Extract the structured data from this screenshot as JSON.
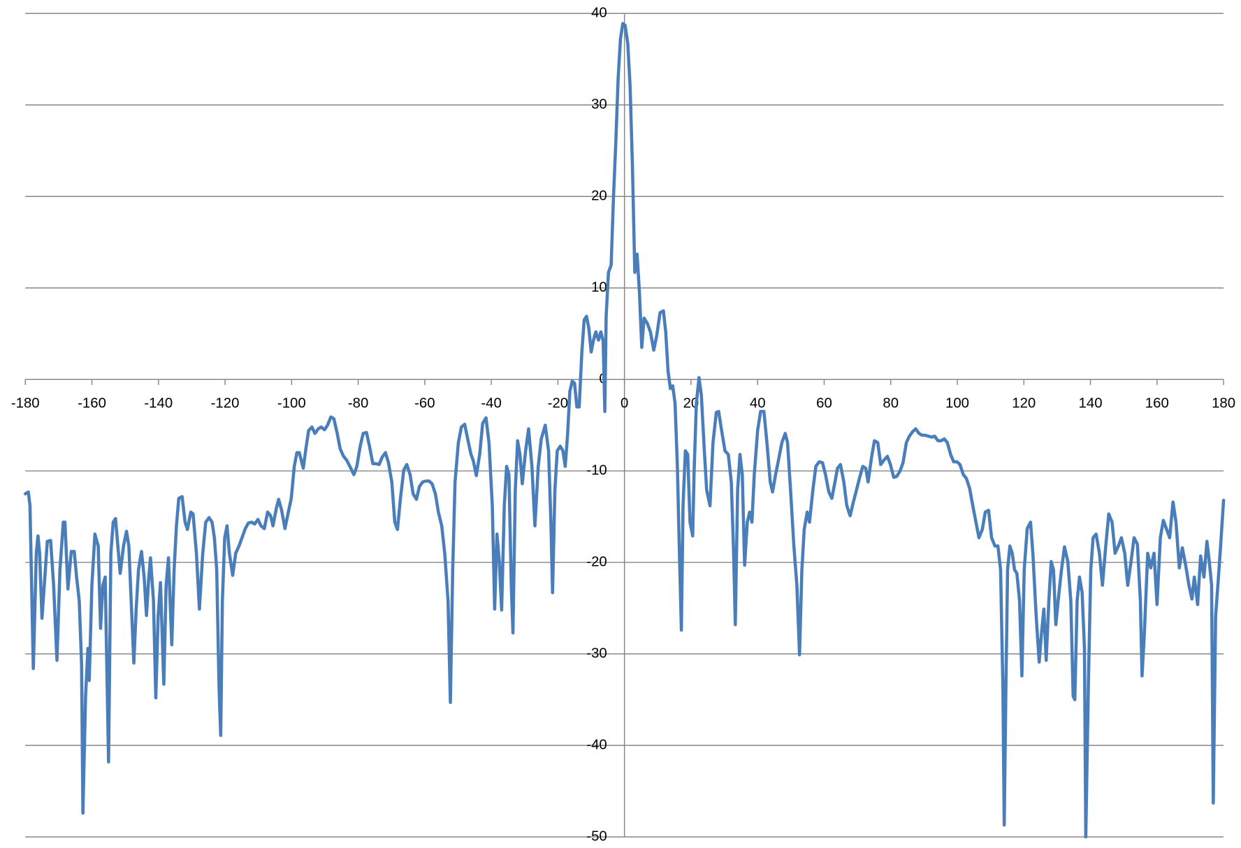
{
  "chart_data": {
    "type": "line",
    "x": [
      -180.0,
      -179.1,
      -178.6,
      -177.6,
      -176.7,
      -176.2,
      -175.7,
      -175.0,
      -174.3,
      -173.4,
      -172.4,
      -171.5,
      -170.5,
      -169.6,
      -168.6,
      -168.1,
      -167.2,
      -166.2,
      -165.3,
      -164.6,
      -163.8,
      -163.1,
      -162.7,
      -161.9,
      -161.2,
      -160.8,
      -160.0,
      -159.1,
      -158.1,
      -157.4,
      -156.7,
      -156.0,
      -155.0,
      -154.3,
      -153.6,
      -152.9,
      -152.2,
      -151.5,
      -150.5,
      -149.6,
      -148.9,
      -148.2,
      -147.4,
      -146.7,
      -146.0,
      -145.1,
      -144.3,
      -143.6,
      -142.9,
      -142.4,
      -141.5,
      -140.8,
      -140.1,
      -139.4,
      -138.4,
      -137.7,
      -137.0,
      -136.0,
      -135.3,
      -134.6,
      -133.9,
      -132.9,
      -132.0,
      -131.3,
      -130.3,
      -129.6,
      -128.6,
      -127.7,
      -126.7,
      -125.8,
      -124.8,
      -123.9,
      -123.2,
      -122.5,
      -121.8,
      -121.3,
      -120.8,
      -120.1,
      -119.4,
      -118.7,
      -117.7,
      -116.8,
      -115.8,
      -114.9,
      -113.9,
      -113.0,
      -112.0,
      -111.1,
      -110.1,
      -109.2,
      -108.2,
      -107.2,
      -106.3,
      -105.6,
      -104.6,
      -103.9,
      -103.0,
      -102.0,
      -101.1,
      -100.1,
      -99.2,
      -98.4,
      -97.7,
      -96.5,
      -95.6,
      -94.9,
      -93.9,
      -93.0,
      -92.0,
      -91.1,
      -90.1,
      -89.2,
      -88.2,
      -87.3,
      -86.3,
      -85.4,
      -84.4,
      -83.5,
      -82.5,
      -81.3,
      -80.4,
      -79.4,
      -78.5,
      -77.5,
      -76.6,
      -75.6,
      -74.7,
      -73.7,
      -72.8,
      -71.8,
      -70.9,
      -69.9,
      -69.0,
      -68.2,
      -67.3,
      -66.3,
      -65.4,
      -64.4,
      -63.5,
      -62.5,
      -61.6,
      -60.6,
      -59.7,
      -58.7,
      -57.8,
      -56.8,
      -55.9,
      -54.9,
      -54.0,
      -53.0,
      -52.3,
      -51.6,
      -50.9,
      -49.9,
      -49.0,
      -48.0,
      -47.1,
      -46.1,
      -45.4,
      -44.5,
      -43.5,
      -42.6,
      -41.6,
      -40.7,
      -39.7,
      -39.0,
      -38.3,
      -37.6,
      -36.9,
      -36.1,
      -35.4,
      -34.7,
      -34.0,
      -33.5,
      -32.8,
      -32.1,
      -31.4,
      -30.7,
      -29.7,
      -28.8,
      -27.8,
      -26.9,
      -25.9,
      -25.0,
      -23.8,
      -22.8,
      -22.1,
      -21.6,
      -20.9,
      -20.2,
      -19.3,
      -18.5,
      -17.8,
      -17.1,
      -16.4,
      -15.7,
      -15.0,
      -14.3,
      -13.6,
      -12.8,
      -12.1,
      -11.4,
      -10.7,
      -10.0,
      -9.3,
      -8.6,
      -7.8,
      -7.1,
      -6.4,
      -5.9,
      -5.5,
      -4.8,
      -4.0,
      -3.3,
      -2.6,
      -1.9,
      -1.2,
      -0.5,
      0.2,
      1.0,
      1.7,
      2.4,
      3.1,
      3.8,
      4.5,
      5.2,
      5.9,
      6.9,
      7.8,
      8.8,
      9.7,
      10.7,
      11.7,
      12.4,
      13.1,
      13.8,
      14.5,
      15.2,
      15.9,
      16.4,
      17.1,
      17.6,
      18.3,
      19.0,
      19.7,
      20.5,
      20.9,
      21.6,
      22.4,
      23.1,
      24.0,
      24.7,
      25.7,
      26.6,
      27.6,
      28.3,
      29.2,
      30.2,
      31.2,
      32.1,
      32.8,
      33.3,
      34.0,
      34.7,
      35.4,
      36.1,
      36.9,
      37.6,
      38.3,
      39.0,
      40.0,
      40.9,
      41.9,
      42.8,
      43.8,
      44.5,
      45.4,
      46.4,
      47.3,
      48.3,
      49.0,
      49.9,
      50.9,
      51.8,
      52.6,
      53.3,
      54.0,
      54.9,
      55.6,
      56.6,
      57.5,
      58.5,
      59.5,
      60.4,
      61.4,
      62.3,
      63.3,
      64.0,
      64.9,
      65.9,
      66.8,
      67.8,
      68.7,
      69.7,
      70.6,
      71.6,
      72.5,
      73.2,
      74.2,
      75.1,
      76.1,
      77.0,
      78.0,
      79.0,
      79.9,
      80.9,
      81.8,
      82.8,
      83.7,
      84.7,
      85.6,
      86.6,
      87.5,
      88.5,
      89.4,
      90.4,
      91.3,
      92.3,
      93.2,
      94.2,
      95.1,
      96.1,
      97.0,
      98.0,
      98.9,
      99.9,
      100.8,
      101.8,
      102.7,
      103.7,
      104.6,
      105.6,
      106.5,
      107.5,
      108.4,
      109.4,
      110.3,
      111.3,
      112.2,
      113.0,
      113.7,
      114.1,
      114.6,
      115.1,
      115.8,
      116.5,
      117.2,
      117.9,
      118.7,
      119.4,
      120.1,
      121.0,
      122.0,
      122.7,
      123.7,
      124.6,
      125.3,
      126.0,
      126.7,
      127.5,
      128.2,
      128.9,
      129.6,
      130.3,
      131.3,
      132.2,
      133.2,
      134.1,
      134.8,
      135.3,
      136.0,
      136.7,
      137.5,
      138.2,
      138.6,
      139.4,
      140.1,
      140.8,
      141.7,
      142.7,
      143.6,
      144.6,
      145.5,
      146.5,
      147.4,
      148.4,
      149.3,
      150.3,
      151.2,
      152.2,
      153.1,
      154.1,
      155.0,
      155.5,
      156.2,
      157.2,
      158.1,
      159.1,
      160.0,
      161.0,
      161.9,
      162.9,
      163.8,
      164.8,
      165.7,
      166.7,
      167.6,
      168.6,
      169.6,
      170.5,
      171.2,
      172.2,
      173.1,
      174.1,
      175.0,
      175.7,
      176.4,
      176.9,
      177.6,
      178.4,
      179.1,
      180.0
    ],
    "values": [
      -12.5,
      -12.3,
      -13.8,
      -31.6,
      -19.0,
      -17.1,
      -19.0,
      -26.1,
      -22.5,
      -17.7,
      -17.6,
      -22.5,
      -30.7,
      -20.8,
      -15.6,
      -15.6,
      -22.9,
      -18.8,
      -18.8,
      -21.6,
      -24.2,
      -31.1,
      -47.4,
      -34.6,
      -29.4,
      -32.9,
      -22.5,
      -16.9,
      -18.2,
      -27.2,
      -22.5,
      -21.6,
      -41.8,
      -19.0,
      -15.6,
      -15.2,
      -18.2,
      -21.2,
      -18.2,
      -16.6,
      -18.2,
      -24.2,
      -31.0,
      -25.1,
      -20.8,
      -18.8,
      -21.6,
      -25.8,
      -21.6,
      -19.5,
      -24.2,
      -34.8,
      -25.9,
      -22.2,
      -33.3,
      -22.5,
      -19.5,
      -29.0,
      -20.8,
      -16.0,
      -13.0,
      -12.8,
      -15.6,
      -16.4,
      -14.5,
      -14.7,
      -19.0,
      -25.1,
      -19.0,
      -15.6,
      -15.1,
      -15.6,
      -17.3,
      -20.8,
      -33.7,
      -38.9,
      -24.2,
      -17.3,
      -16.0,
      -19.0,
      -21.4,
      -19.0,
      -18.2,
      -17.3,
      -16.3,
      -15.7,
      -15.6,
      -15.8,
      -15.3,
      -16.0,
      -16.3,
      -14.5,
      -14.9,
      -16.0,
      -14.1,
      -13.1,
      -14.3,
      -16.3,
      -14.7,
      -13.0,
      -9.5,
      -8.0,
      -8.0,
      -9.7,
      -7.3,
      -5.6,
      -5.2,
      -5.9,
      -5.4,
      -5.2,
      -5.5,
      -5.0,
      -4.1,
      -4.3,
      -5.9,
      -7.6,
      -8.4,
      -8.8,
      -9.5,
      -10.4,
      -9.5,
      -7.3,
      -5.9,
      -5.8,
      -7.3,
      -9.2,
      -9.2,
      -9.3,
      -8.5,
      -8.0,
      -9.1,
      -11.2,
      -15.6,
      -16.4,
      -13.0,
      -9.9,
      -9.3,
      -10.4,
      -12.5,
      -13.1,
      -11.7,
      -11.2,
      -11.1,
      -11.1,
      -11.4,
      -12.5,
      -14.5,
      -16.0,
      -19.0,
      -24.2,
      -35.3,
      -20.8,
      -11.2,
      -6.9,
      -5.2,
      -4.9,
      -6.5,
      -8.2,
      -8.9,
      -10.5,
      -8.2,
      -4.8,
      -4.2,
      -6.9,
      -13.8,
      -25.1,
      -16.9,
      -19.9,
      -25.2,
      -13.8,
      -9.5,
      -10.4,
      -22.5,
      -27.7,
      -12.1,
      -6.7,
      -8.2,
      -11.4,
      -7.8,
      -5.4,
      -9.5,
      -16.0,
      -9.5,
      -6.5,
      -5.0,
      -7.8,
      -15.6,
      -23.3,
      -12.1,
      -7.8,
      -7.3,
      -7.8,
      -9.5,
      -6.1,
      -1.3,
      -0.2,
      -0.4,
      -3.0,
      -3.0,
      3.0,
      6.5,
      6.9,
      5.6,
      3.0,
      4.3,
      5.2,
      4.3,
      5.2,
      4.2,
      -3.5,
      6.9,
      11.7,
      12.5,
      19.9,
      25.9,
      32.9,
      37.2,
      38.9,
      38.7,
      36.7,
      32.0,
      23.3,
      11.7,
      13.7,
      9.5,
      3.5,
      6.7,
      6.1,
      5.2,
      3.2,
      4.8,
      7.3,
      7.5,
      5.2,
      0.9,
      -1.0,
      -0.7,
      -2.6,
      -9.5,
      -17.3,
      -27.4,
      -13.8,
      -7.8,
      -8.2,
      -15.6,
      -17.1,
      -10.4,
      -2.6,
      0.2,
      -1.7,
      -7.8,
      -12.1,
      -13.8,
      -6.9,
      -3.6,
      -3.5,
      -5.6,
      -7.8,
      -8.2,
      -11.2,
      -19.0,
      -26.8,
      -12.1,
      -8.2,
      -10.4,
      -20.3,
      -15.6,
      -14.5,
      -15.6,
      -10.4,
      -5.6,
      -3.5,
      -3.5,
      -6.9,
      -11.2,
      -12.3,
      -10.4,
      -8.6,
      -6.9,
      -5.9,
      -6.9,
      -12.1,
      -18.2,
      -22.5,
      -30.1,
      -20.8,
      -16.4,
      -14.5,
      -15.6,
      -12.1,
      -9.5,
      -9.0,
      -9.1,
      -10.4,
      -12.3,
      -13.0,
      -11.1,
      -9.7,
      -9.3,
      -11.2,
      -13.8,
      -14.9,
      -13.5,
      -12.1,
      -10.8,
      -9.5,
      -9.7,
      -11.2,
      -8.6,
      -6.7,
      -6.9,
      -9.3,
      -8.8,
      -8.4,
      -9.3,
      -10.7,
      -10.6,
      -10.0,
      -9.1,
      -6.9,
      -6.2,
      -5.7,
      -5.4,
      -5.9,
      -6.1,
      -6.1,
      -6.2,
      -6.3,
      -6.2,
      -6.7,
      -6.7,
      -6.5,
      -6.9,
      -8.2,
      -9.0,
      -9.0,
      -9.3,
      -10.4,
      -10.8,
      -11.9,
      -13.7,
      -15.6,
      -17.3,
      -16.4,
      -14.5,
      -14.3,
      -17.3,
      -18.2,
      -18.2,
      -20.8,
      -33.7,
      -48.7,
      -33.7,
      -20.8,
      -18.2,
      -19.0,
      -20.8,
      -21.2,
      -24.2,
      -32.4,
      -20.8,
      -16.3,
      -15.6,
      -19.0,
      -25.9,
      -30.9,
      -27.7,
      -25.1,
      -30.7,
      -24.2,
      -19.9,
      -20.8,
      -26.8,
      -24.2,
      -20.8,
      -18.3,
      -19.9,
      -24.2,
      -34.6,
      -35.0,
      -24.2,
      -21.6,
      -23.3,
      -29.4,
      -50.0,
      -32.9,
      -20.8,
      -17.3,
      -16.9,
      -19.0,
      -22.5,
      -18.2,
      -14.7,
      -15.6,
      -19.0,
      -18.2,
      -17.3,
      -19.0,
      -22.5,
      -19.9,
      -17.3,
      -18.0,
      -24.2,
      -32.4,
      -27.7,
      -19.0,
      -20.6,
      -19.0,
      -24.6,
      -17.3,
      -15.4,
      -16.4,
      -17.3,
      -13.4,
      -15.6,
      -20.6,
      -18.4,
      -20.3,
      -22.5,
      -24.0,
      -21.6,
      -24.6,
      -19.3,
      -21.6,
      -17.7,
      -19.9,
      -22.5,
      -46.3,
      -25.9,
      -21.9,
      -18.2,
      -13.2
    ],
    "color": "#4a7ebb",
    "xlim": [
      -180,
      180
    ],
    "xticks": [
      -180,
      -160,
      -140,
      -120,
      -100,
      -80,
      -60,
      -40,
      -20,
      0,
      20,
      40,
      60,
      80,
      100,
      120,
      140,
      160,
      180
    ],
    "ylim": [
      -50,
      40
    ],
    "yticks": [
      -50,
      -40,
      -30,
      -20,
      -10,
      0,
      10,
      20,
      30,
      40
    ],
    "grid": true
  }
}
